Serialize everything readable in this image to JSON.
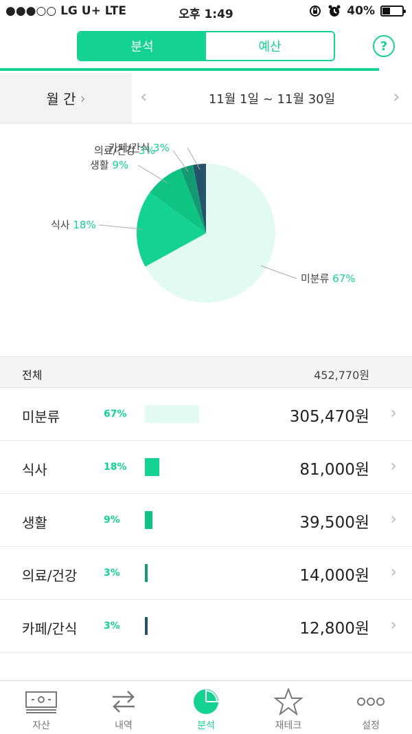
{
  "status_bar": {
    "carrier": "●●●○○ LG U+  LTE",
    "time": "오후 1:49",
    "battery": "40%",
    "battery_level": 0.4
  },
  "segment": {
    "tabs": [
      {
        "label": "분석",
        "active": true
      },
      {
        "label": "예산",
        "active": false
      }
    ],
    "help": "?"
  },
  "period": {
    "mode": "월 간",
    "range": "11월 1일 ~ 11월 30일"
  },
  "colors": {
    "accent": "#14d28f"
  },
  "chart_data": {
    "type": "pie",
    "slices": [
      {
        "label": "미분류",
        "pct": "67%",
        "value": 67,
        "color": "#e2faf1"
      },
      {
        "label": "식사",
        "pct": "18%",
        "value": 18,
        "color": "#14d28f"
      },
      {
        "label": "생활",
        "pct": "9%",
        "value": 9,
        "color": "#0fc483"
      },
      {
        "label": "의료/건강",
        "pct": "3%",
        "value": 3,
        "color": "#129a72"
      },
      {
        "label": "카페/간식",
        "pct": "3%",
        "value": 3,
        "color": "#24526a"
      }
    ]
  },
  "total": {
    "label": "전체",
    "amount": "452,770원"
  },
  "categories": [
    {
      "name": "미분류",
      "pct": "67%",
      "amount": "305,470원",
      "share": 0.67,
      "color": "#e2faf1"
    },
    {
      "name": "식사",
      "pct": "18%",
      "amount": "81,000원",
      "share": 0.18,
      "color": "#14d28f"
    },
    {
      "name": "생활",
      "pct": "9%",
      "amount": "39,500원",
      "share": 0.09,
      "color": "#0fc483"
    },
    {
      "name": "의료/건강",
      "pct": "3%",
      "amount": "14,000원",
      "share": 0.03,
      "color": "#129a72"
    },
    {
      "name": "카페/간식",
      "pct": "3%",
      "amount": "12,800원",
      "share": 0.03,
      "color": "#24526a"
    }
  ],
  "tabbar": [
    {
      "label": "자산",
      "icon": "wallet-icon",
      "active": false
    },
    {
      "label": "내역",
      "icon": "transfer-arrows-icon",
      "active": false
    },
    {
      "label": "분석",
      "icon": "pie-chart-icon",
      "active": true
    },
    {
      "label": "재테크",
      "icon": "star-icon",
      "active": false
    },
    {
      "label": "설정",
      "icon": "more-dots-icon",
      "active": false
    }
  ]
}
